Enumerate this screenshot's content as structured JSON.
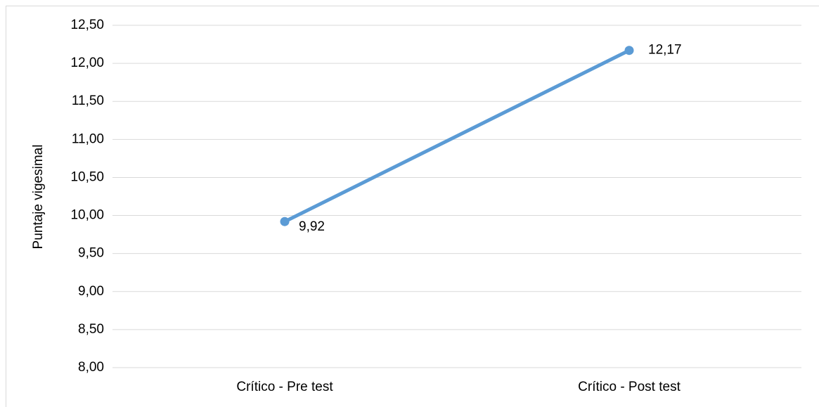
{
  "chart_data": {
    "type": "line",
    "y_label": "Puntaje vigesimal",
    "categories": [
      "Crítico - Pre test",
      "Crítico - Post test"
    ],
    "values": [
      9.92,
      12.17
    ],
    "value_labels": [
      "9,92",
      "12,17"
    ],
    "color": "#5b9bd5",
    "ylim": [
      8,
      12.5
    ],
    "yticks": [
      {
        "value": 8,
        "label": "8,00"
      },
      {
        "value": 8.5,
        "label": "8,50"
      },
      {
        "value": 9,
        "label": "9,00"
      },
      {
        "value": 9.5,
        "label": "9,50"
      },
      {
        "value": 10,
        "label": "10,00"
      },
      {
        "value": 10.5,
        "label": "10,50"
      },
      {
        "value": 11,
        "label": "11,00"
      },
      {
        "value": 11.5,
        "label": "11,50"
      },
      {
        "value": 12,
        "label": "12,00"
      },
      {
        "value": 12.5,
        "label": "12,50"
      }
    ],
    "grid": true
  }
}
